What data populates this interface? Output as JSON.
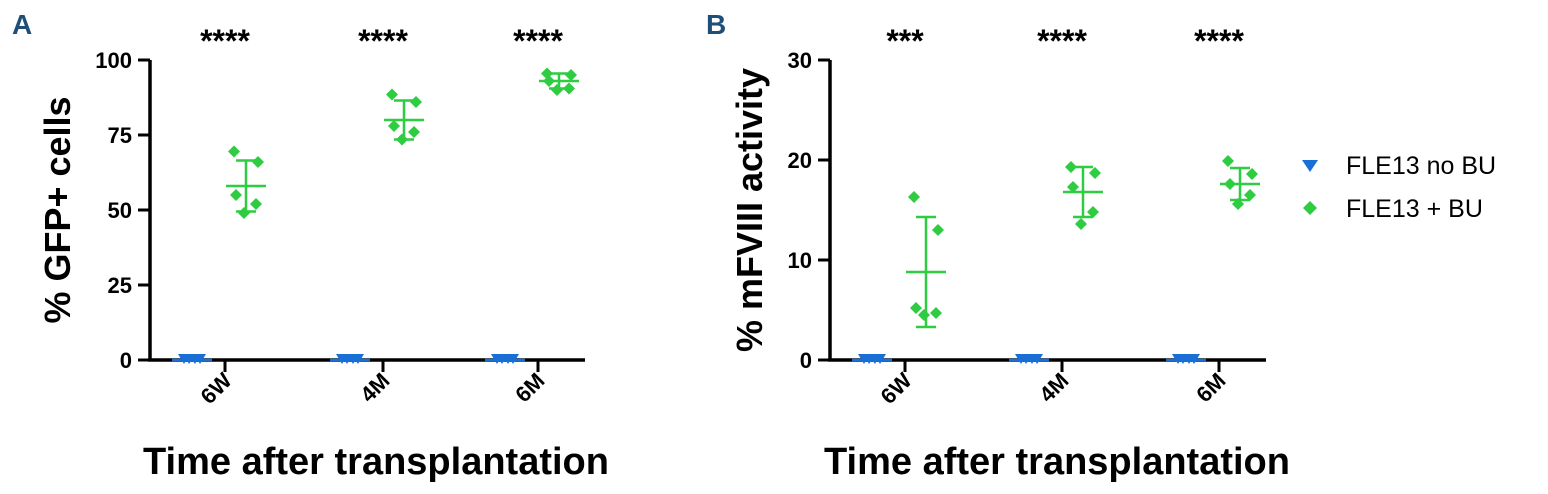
{
  "chart_data": [
    {
      "panel": "A",
      "type": "scatter",
      "ylabel": "% GFP+ cells",
      "xlabel": "Time after transplantation",
      "ylim": [
        0,
        100
      ],
      "yticks": [
        0,
        25,
        50,
        75,
        100
      ],
      "categories": [
        "6W",
        "4M",
        "6M"
      ],
      "significance": [
        "****",
        "****",
        "****"
      ],
      "series": [
        {
          "name": "FLE13 no BU",
          "marker": "triangle-down",
          "points": [
            [
              0,
              0,
              0,
              0
            ],
            [
              0,
              0,
              0,
              0
            ],
            [
              0,
              0,
              0,
              0
            ]
          ],
          "mean": [
            0,
            0,
            0
          ],
          "sd": [
            0,
            0,
            0
          ]
        },
        {
          "name": "FLE13 + BU",
          "marker": "diamond",
          "points": [
            [
              69.5,
              66,
              55,
              52,
              49
            ],
            [
              88.5,
              86,
              78,
              76,
              73.5
            ],
            [
              95.5,
              95,
              93,
              90.5,
              90
            ]
          ],
          "mean": [
            58,
            80,
            93
          ],
          "sd": [
            8.5,
            6.5,
            2.5
          ]
        }
      ]
    },
    {
      "panel": "B",
      "type": "scatter",
      "ylabel": "% mFVIII activity",
      "xlabel": "Time after transplantation",
      "ylim": [
        0,
        30
      ],
      "yticks": [
        0,
        10,
        20,
        30
      ],
      "categories": [
        "6W",
        "4M",
        "6M"
      ],
      "significance": [
        "***",
        "****",
        "****"
      ],
      "series": [
        {
          "name": "FLE13 no BU",
          "marker": "triangle-down",
          "points": [
            [
              0,
              0,
              0,
              0
            ],
            [
              0,
              0,
              0,
              0
            ],
            [
              0,
              0,
              0,
              0
            ]
          ],
          "mean": [
            0,
            0,
            0
          ],
          "sd": [
            0,
            0,
            0
          ]
        },
        {
          "name": "FLE13 + BU",
          "marker": "diamond",
          "points": [
            [
              16.3,
              13,
              5.2,
              4.7,
              4.5
            ],
            [
              19.3,
              18.7,
              17.3,
              14.8,
              13.6
            ],
            [
              19.9,
              18.6,
              17.6,
              16.5,
              15.6
            ]
          ],
          "mean": [
            8.8,
            16.8,
            17.6
          ],
          "sd": [
            5.5,
            2.5,
            1.6
          ]
        }
      ]
    }
  ],
  "legend": [
    {
      "label": "FLE13 no BU",
      "color": "#1a6fd6",
      "marker": "triangle-down"
    },
    {
      "label": "FLE13 + BU",
      "color": "#2ecc40",
      "marker": "diamond"
    }
  ],
  "colors": {
    "no_bu": "#1a6fd6",
    "bu": "#2ecc40",
    "panel_letter": "#1f4e79"
  }
}
